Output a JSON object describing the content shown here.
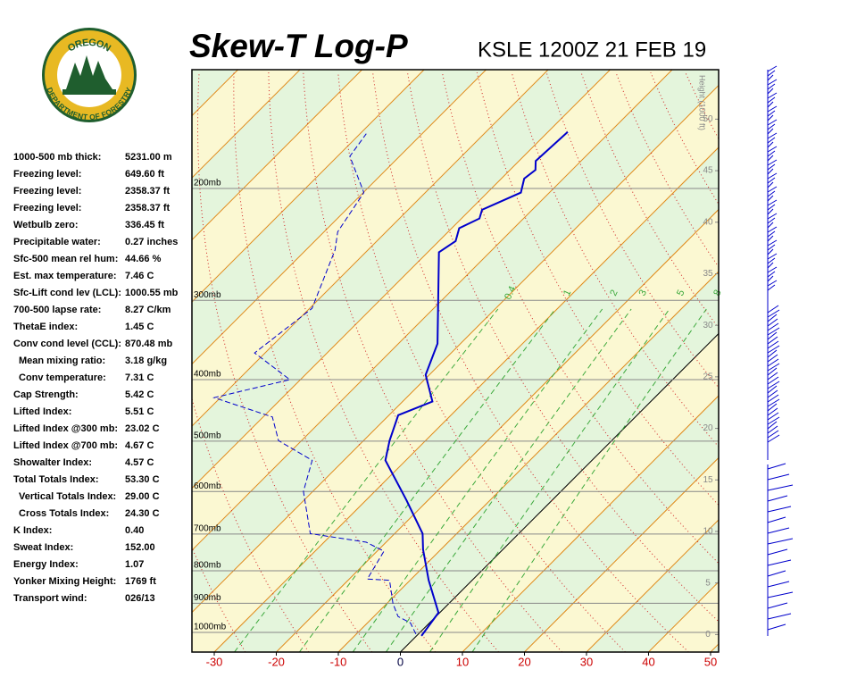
{
  "logo": {
    "top": "OREGON",
    "bottom": "DEPARTMENT OF FORESTRY"
  },
  "chart_data": {
    "type": "skewt",
    "title": "Skew-T Log-P",
    "subtitle": "KSLE 1200Z 21 FEB 19",
    "xlim": [
      -33.6,
      51.3
    ],
    "xticks": [
      -30,
      -20,
      -10,
      0,
      10,
      20,
      30,
      40,
      50
    ],
    "ylim": [
      1074,
      130
    ],
    "log_y": true,
    "yticks": [
      {
        "value": 1000,
        "label": "1000mb"
      },
      {
        "value": 900,
        "label": "900mb"
      },
      {
        "value": 800,
        "label": "800mb"
      },
      {
        "value": 700,
        "label": "700mb"
      },
      {
        "value": 600,
        "label": "600mb"
      },
      {
        "value": 500,
        "label": "500mb"
      },
      {
        "value": 400,
        "label": "400mb"
      },
      {
        "value": 300,
        "label": "300mb"
      },
      {
        "value": 200,
        "label": "200mb"
      }
    ],
    "y2label": "Height (1000 ft)",
    "y2lim": [
      -1.7,
      54.8
    ],
    "y2ticks": [
      0,
      5,
      10,
      15,
      20,
      25,
      30,
      35,
      40,
      45,
      50
    ],
    "mixing_ratios": [
      0.4,
      1,
      2,
      3,
      5,
      8
    ],
    "grid": true,
    "series": [
      {
        "color": "#0000cc",
        "style": "solid",
        "p": [
          1013,
          931,
          828,
          740,
          699,
          619,
          536,
          499,
          455,
          433,
          393,
          351,
          252,
          242,
          231,
          223,
          216,
          203,
          193,
          187,
          181,
          163
        ],
        "values": [
          0.8,
          -0.2,
          -7.0,
          -12.9,
          -15.5,
          -23.5,
          -33.3,
          -35.8,
          -38.5,
          -35.2,
          -40.6,
          -43.7,
          -58.2,
          -57.3,
          -58.8,
          -57.1,
          -58.1,
          -54.6,
          -56.3,
          -55.9,
          -57.3,
          -56.8
        ]
      },
      {
        "color": "#0000cc",
        "style": "dashed",
        "p": [
          1006,
          966,
          944,
          901,
          828,
          824,
          745,
          721,
          699,
          600,
          536,
          499,
          458,
          427,
          400,
          363,
          309,
          250,
          234,
          203,
          178,
          164
        ],
        "values": [
          -0.4,
          -3.1,
          -6.1,
          -9.0,
          -13.3,
          -17.1,
          -18.9,
          -23.2,
          -33.6,
          -41.5,
          -45.1,
          -53.7,
          -58.5,
          -71.0,
          -61.7,
          -71.7,
          -69.6,
          -75.3,
          -77.8,
          -79.9,
          -88.0,
          -89.0
        ]
      }
    ]
  },
  "stats": [
    {
      "label": "1000-500 mb thick:",
      "value": "5231.00 m"
    },
    {
      "label": "Freezing level:",
      "value": "649.60 ft"
    },
    {
      "label": "Freezing level:",
      "value": "2358.37 ft"
    },
    {
      "label": "Freezing level:",
      "value": "2358.37 ft"
    },
    {
      "label": "Wetbulb zero:",
      "value": "336.45 ft"
    },
    {
      "label": "Precipitable water:",
      "value": "0.27 inches"
    },
    {
      "label": "Sfc-500 mean rel hum:",
      "value": "44.66 %"
    },
    {
      "label": "Est. max temperature:",
      "value": "7.46 C"
    },
    {
      "label": "Sfc-Lift cond lev (LCL):",
      "value": "1000.55 mb"
    },
    {
      "label": "700-500 lapse rate:",
      "value": "8.27 C/km"
    },
    {
      "label": "ThetaE index:",
      "value": "1.45 C"
    },
    {
      "label": "Conv cond level (CCL):",
      "value": "870.48 mb"
    },
    {
      "label": "Mean mixing ratio:",
      "value": "3.18 g/kg"
    },
    {
      "label": "Conv temperature:",
      "value": "7.31 C"
    },
    {
      "label": "Cap Strength:",
      "value": "5.42 C"
    },
    {
      "label": "Lifted Index:",
      "value": "5.51 C"
    },
    {
      "label": "Lifted Index @300 mb:",
      "value": "23.02 C"
    },
    {
      "label": "Lifted Index @700 mb:",
      "value": "4.67 C"
    },
    {
      "label": "Showalter Index:",
      "value": "4.57 C"
    },
    {
      "label": "Total Totals Index:",
      "value": "53.30 C"
    },
    {
      "label": "Vertical Totals Index:",
      "value": "29.00 C"
    },
    {
      "label": "Cross Totals Index:",
      "value": "24.30 C"
    },
    {
      "label": "K Index:",
      "value": "0.40"
    },
    {
      "label": "Sweat Index:",
      "value": "152.00"
    },
    {
      "label": "Energy Index:",
      "value": "1.07"
    },
    {
      "label": "Yonker Mixing Height:",
      "value": "1769 ft"
    },
    {
      "label": "Transport wind:",
      "value": "026/13"
    }
  ]
}
